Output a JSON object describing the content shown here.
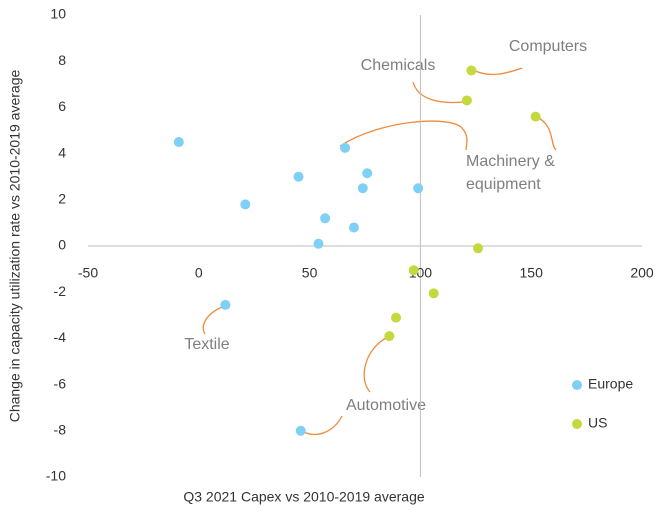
{
  "chart_data": {
    "type": "scatter",
    "x_label": "Q3 2021 Capex vs 2010-2019 average",
    "y_label": "Change in capacity utilization rate vs 2010-2019 average",
    "xlim": [
      -50,
      200
    ],
    "xticks": [
      -50,
      0,
      50,
      100,
      150,
      200
    ],
    "ylim": [
      -10,
      10
    ],
    "yticks": [
      -10,
      -8,
      -6,
      -4,
      -2,
      0,
      2,
      4,
      6,
      8,
      10
    ],
    "y_axis_crosses_at_x": 100,
    "x_axis_crosses_at_y": 0,
    "legend": "right",
    "series": [
      {
        "name": "Europe",
        "color": "#7fd0f5",
        "x": [
          -9,
          66,
          76,
          45,
          74,
          99,
          21,
          57,
          70,
          54,
          12,
          46
        ],
        "values": [
          4.5,
          4.25,
          3.15,
          3.0,
          2.5,
          2.5,
          1.8,
          1.2,
          0.8,
          0.1,
          -2.55,
          -8.0
        ]
      },
      {
        "name": "US",
        "color": "#c5d83e",
        "x": [
          123,
          121,
          152,
          126,
          97,
          106,
          89,
          86
        ],
        "values": [
          7.6,
          6.3,
          5.6,
          -0.1,
          -1.05,
          -2.05,
          -3.1,
          -3.9
        ]
      }
    ],
    "annotations": [
      {
        "lines": [
          "Computers"
        ]
      },
      {
        "lines": [
          "Chemicals"
        ]
      },
      {
        "lines": [
          "Machinery &",
          "equipment"
        ]
      },
      {
        "lines": [
          "Textile"
        ]
      },
      {
        "lines": [
          "Automotive"
        ]
      }
    ]
  }
}
